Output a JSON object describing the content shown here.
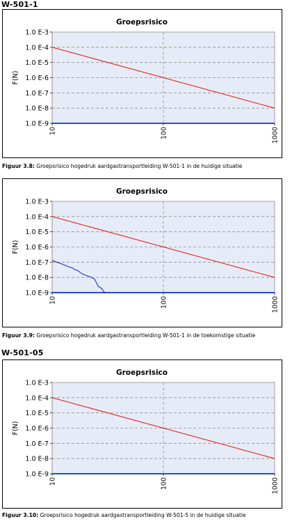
{
  "sections": [
    {
      "heading": "W-501-1",
      "chart_title": "Groepsrisico",
      "caption_label": "Figuur 3.8:",
      "caption_text": " Groepsrisico hogedruk aardgastransportleiding W-501-1 in de huidige situatie"
    },
    {
      "heading": "",
      "chart_title": "Groepsrisico",
      "caption_label": "Figuur 3.9:",
      "caption_text": " Groepsrisico hogedruk aardgastransportleiding W-501-1 in de toekomstige situatie"
    },
    {
      "heading": "W-501-05",
      "chart_title": "Groepsrisico",
      "caption_label": "Figuur 3.10:",
      "caption_text": " Groepsrisico hogedruk aardgastransportleiding W-501-5 in de huidige situatie"
    }
  ],
  "colors": {
    "plot_background": "#e6ecf7",
    "reference_line": "#e8251f",
    "risk_curve": "#1d2fc4",
    "axis_line": "#2e46d8",
    "grid": "#8c8c8c"
  },
  "chart_data": [
    {
      "type": "line",
      "title": "Groepsrisico",
      "xlabel": "",
      "ylabel": "F(N)",
      "x_scale": "log",
      "y_scale": "log",
      "xlim": [
        10,
        1000
      ],
      "ylim": [
        1e-09,
        0.001
      ],
      "x_ticks": [
        "10",
        "100",
        "1000"
      ],
      "y_ticks": [
        "1.0 E-9",
        "1.0 E-8",
        "1.0 E-7",
        "1.0 E-6",
        "1.0 E-5",
        "1.0 E-4",
        "1.0 E-3"
      ],
      "grid": true,
      "series": [
        {
          "role": "reference",
          "x": [
            10,
            1000
          ],
          "y": [
            0.0001,
            1e-08
          ]
        }
      ]
    },
    {
      "type": "line",
      "title": "Groepsrisico",
      "xlabel": "",
      "ylabel": "F(N)",
      "x_scale": "log",
      "y_scale": "log",
      "xlim": [
        10,
        1000
      ],
      "ylim": [
        1e-09,
        0.001
      ],
      "x_ticks": [
        "10",
        "100",
        "1000"
      ],
      "y_ticks": [
        "1.0 E-9",
        "1.0 E-8",
        "1.0 E-7",
        "1.0 E-6",
        "1.0 E-5",
        "1.0 E-4",
        "1.0 E-3"
      ],
      "grid": true,
      "series": [
        {
          "role": "reference",
          "x": [
            10,
            1000
          ],
          "y": [
            0.0001,
            1e-08
          ]
        },
        {
          "role": "risk",
          "x": [
            10,
            11,
            12,
            13,
            14,
            15,
            16,
            17,
            18,
            19,
            20,
            21,
            22,
            24,
            26,
            27,
            28,
            29,
            30
          ],
          "y": [
            1.3e-07,
            1e-07,
            8e-08,
            6.4e-08,
            5e-08,
            4.4e-08,
            3.2e-08,
            2.8e-08,
            2e-08,
            1.6e-08,
            1.4e-08,
            1.2e-08,
            1.1e-08,
            8e-09,
            2.5e-09,
            2.2e-09,
            1.8e-09,
            1.2e-09,
            1e-09
          ]
        }
      ]
    },
    {
      "type": "line",
      "title": "Groepsrisico",
      "xlabel": "",
      "ylabel": "F(N)",
      "x_scale": "log",
      "y_scale": "log",
      "xlim": [
        10,
        1000
      ],
      "ylim": [
        1e-09,
        0.001
      ],
      "x_ticks": [
        "10",
        "100",
        "1000"
      ],
      "y_ticks": [
        "1.0 E-9",
        "1.0 E-8",
        "1.0 E-7",
        "1.0 E-6",
        "1.0 E-5",
        "1.0 E-4",
        "1.0 E-3"
      ],
      "grid": true,
      "series": [
        {
          "role": "reference",
          "x": [
            10,
            1000
          ],
          "y": [
            0.0001,
            1e-08
          ]
        }
      ]
    }
  ]
}
